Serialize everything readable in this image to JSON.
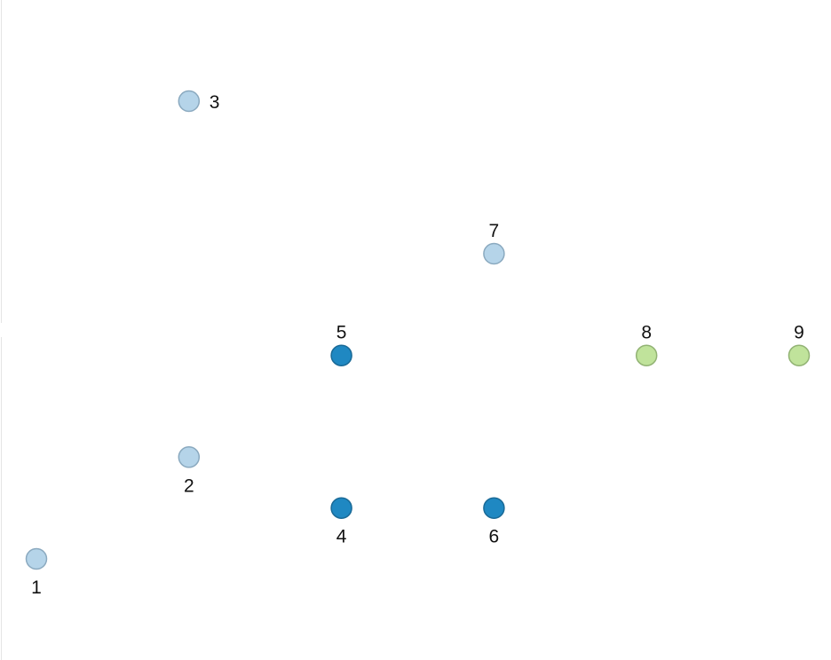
{
  "chart_data": {
    "type": "scatter",
    "xlim": [
      0,
      10
    ],
    "ylim": [
      0,
      12
    ],
    "grid": false,
    "legend": "none",
    "groups": {
      "light-blue": {
        "fill": "#b5d4e9",
        "stroke": "#8aa9bf"
      },
      "dark-blue": {
        "fill": "#1f88c2",
        "stroke": "#1a6a97"
      },
      "light-green": {
        "fill": "#c0e39b",
        "stroke": "#92b374"
      }
    },
    "points": [
      {
        "label": "1",
        "x": 0.2,
        "y": 1.9,
        "group": "light-blue",
        "label_pos": "below"
      },
      {
        "label": "2",
        "x": 2.2,
        "y": 3.9,
        "group": "light-blue",
        "label_pos": "below"
      },
      {
        "label": "3",
        "x": 2.2,
        "y": 10.9,
        "group": "light-blue",
        "label_pos": "right"
      },
      {
        "label": "4",
        "x": 4.2,
        "y": 2.9,
        "group": "dark-blue",
        "label_pos": "below"
      },
      {
        "label": "5",
        "x": 4.2,
        "y": 5.9,
        "group": "dark-blue",
        "label_pos": "above"
      },
      {
        "label": "6",
        "x": 6.2,
        "y": 2.9,
        "group": "dark-blue",
        "label_pos": "below"
      },
      {
        "label": "7",
        "x": 6.2,
        "y": 7.9,
        "group": "light-blue",
        "label_pos": "above"
      },
      {
        "label": "8",
        "x": 8.2,
        "y": 5.9,
        "group": "light-green",
        "label_pos": "above"
      },
      {
        "label": "9",
        "x": 10.2,
        "y": 5.9,
        "group": "light-green",
        "label_pos": "above"
      }
    ]
  }
}
